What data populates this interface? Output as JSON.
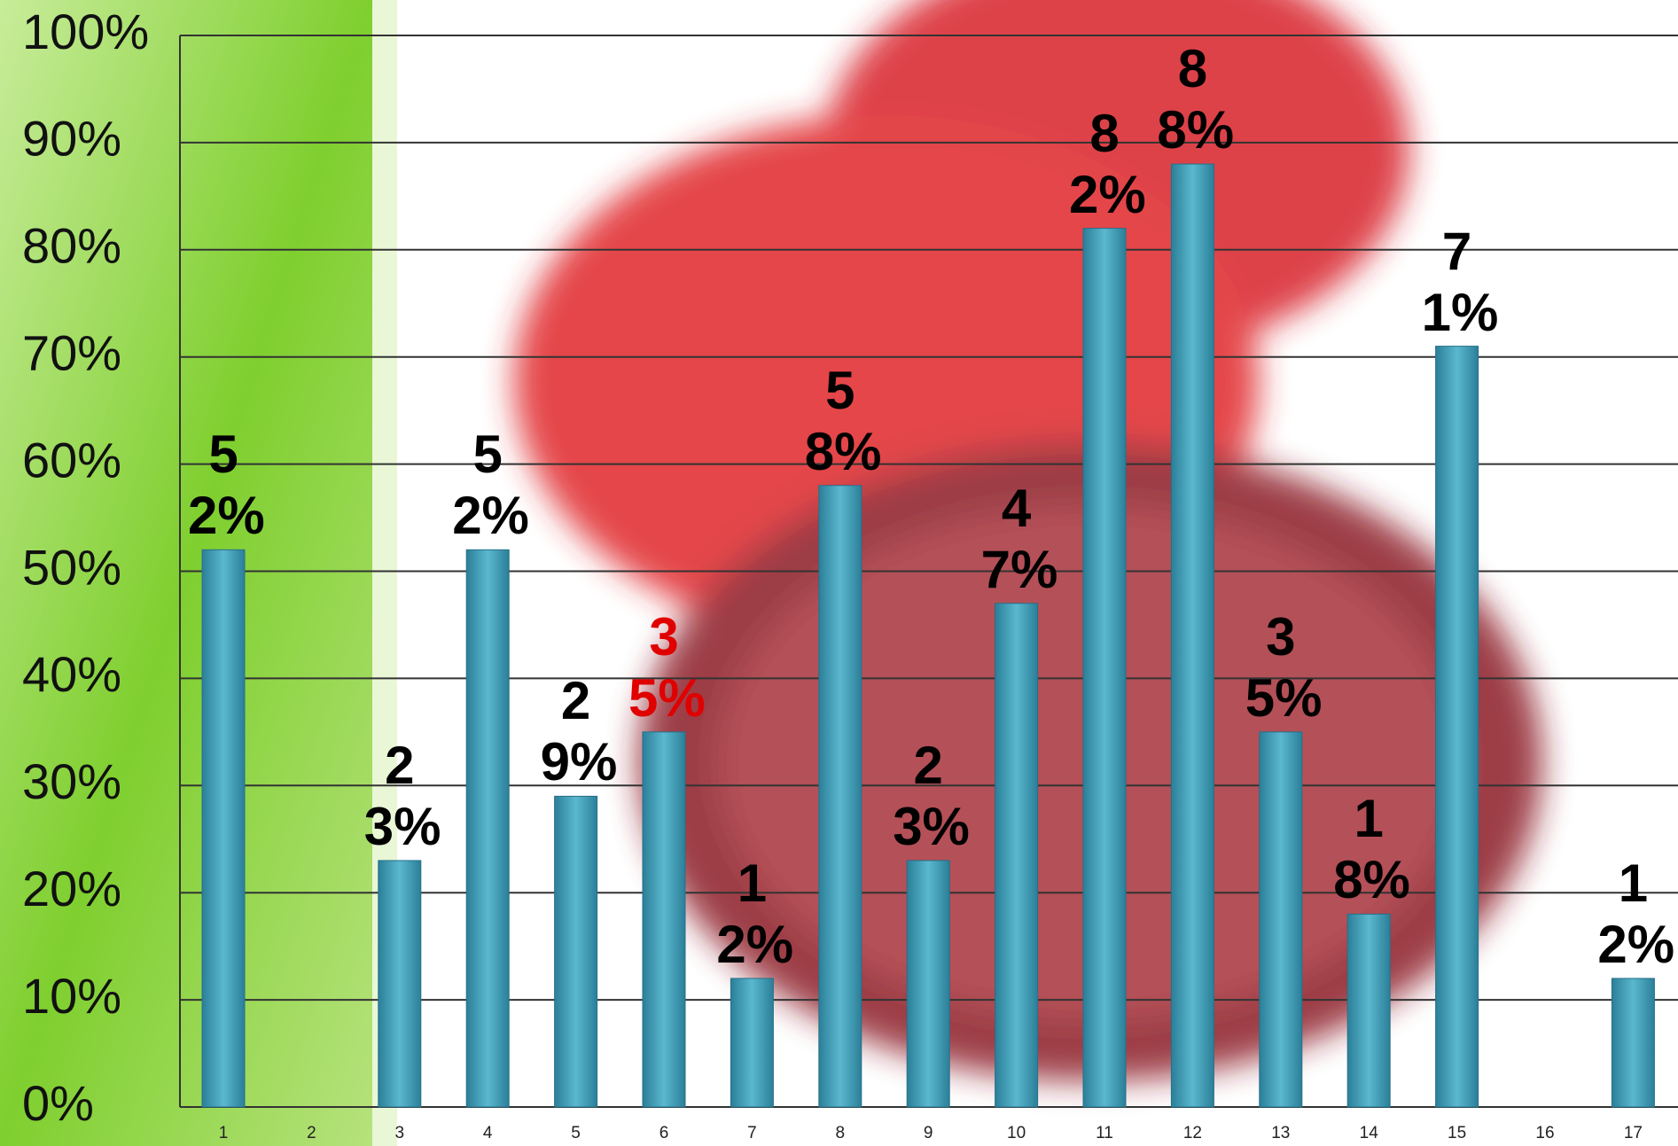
{
  "chart_data": {
    "type": "bar",
    "categories": [
      "1",
      "2",
      "3",
      "4",
      "5",
      "6",
      "7",
      "8",
      "9",
      "10",
      "11",
      "12",
      "13",
      "14",
      "15",
      "16",
      "17"
    ],
    "values": [
      52,
      null,
      23,
      52,
      29,
      35,
      12,
      58,
      23,
      47,
      82,
      88,
      35,
      18,
      71,
      null,
      12
    ],
    "value_labels": [
      "52%",
      null,
      "23%",
      "52%",
      "29%",
      "35%",
      "12%",
      "58%",
      "23%",
      "47%",
      "82%",
      "88%",
      "35%",
      "18%",
      "71%",
      null,
      "12%"
    ],
    "value_label_colors": [
      "#000000",
      null,
      "#000000",
      "#000000",
      "#000000",
      "#e00000",
      "#000000",
      "#000000",
      "#000000",
      "#000000",
      "#000000",
      "#000000",
      "#000000",
      "#000000",
      "#000000",
      null,
      "#000000"
    ],
    "color": "#3d9bb3",
    "ylim": [
      0,
      100
    ],
    "yticks": [
      {
        "value": 0,
        "label": "0%"
      },
      {
        "value": 10,
        "label": "10%"
      },
      {
        "value": 20,
        "label": "20%"
      },
      {
        "value": 30,
        "label": "30%"
      },
      {
        "value": 40,
        "label": "40%"
      },
      {
        "value": 50,
        "label": "50%"
      },
      {
        "value": 60,
        "label": "60%"
      },
      {
        "value": 70,
        "label": "70%"
      },
      {
        "value": 80,
        "label": "80%"
      },
      {
        "value": 90,
        "label": "90%"
      },
      {
        "value": 100,
        "label": "100%"
      }
    ],
    "grid": true
  }
}
